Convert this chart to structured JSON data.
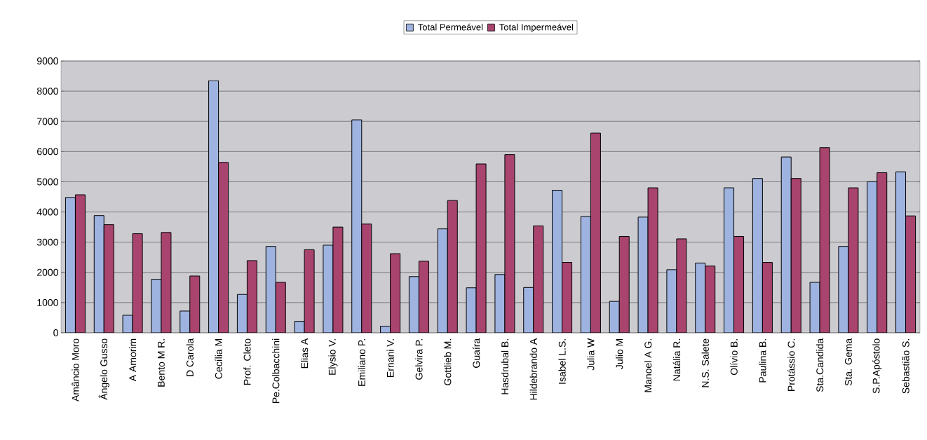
{
  "chart_data": {
    "type": "bar",
    "categories": [
      "Amâncio Moro",
      "Ângelo Gusso",
      "A Amorim",
      "Bento M R.",
      "D Carola",
      "Cecília M",
      "Prof. Cleto",
      "Pe.Colbacchini",
      "Elias A",
      "Elysio V.",
      "Emiliano P.",
      "Ernani V.",
      "Gelvira P.",
      "Gottlieb M.",
      "Guaíra",
      "Hasdrubal B.",
      "Hildebrando A",
      "Isabel L.S.",
      "Julia W",
      "Julio M",
      "Manoel A G.",
      "Natália R.",
      "N.S. Salete",
      "Olívio B.",
      "Paulina B.",
      "Protássio C.",
      "Sta.Candida",
      "Sta. Gema",
      "S.P.Apóstolo",
      "Sebastião S."
    ],
    "series": [
      {
        "name": "Total Permeável",
        "color": "#9fb3e0",
        "values": [
          4480,
          3880,
          580,
          1770,
          720,
          8350,
          1270,
          2860,
          380,
          2900,
          7050,
          220,
          1860,
          3440,
          1490,
          1930,
          1500,
          4720,
          3850,
          1040,
          3830,
          2090,
          2310,
          4800,
          5110,
          5820,
          1670,
          2860,
          5000,
          5330
        ]
      },
      {
        "name": "Total Impermeável",
        "color": "#a8446e",
        "values": [
          4570,
          3580,
          3280,
          3320,
          1880,
          5640,
          2390,
          1670,
          2750,
          3500,
          3600,
          2620,
          2370,
          4380,
          5590,
          5900,
          3540,
          2330,
          6610,
          3190,
          4800,
          3110,
          2210,
          3190,
          2330,
          5110,
          6130,
          4800,
          5300,
          3870
        ]
      }
    ],
    "ylim": [
      0,
      9000
    ],
    "yticks": [
      0,
      1000,
      2000,
      3000,
      4000,
      5000,
      6000,
      7000,
      8000,
      9000
    ],
    "grid": "y",
    "legend": "top"
  }
}
